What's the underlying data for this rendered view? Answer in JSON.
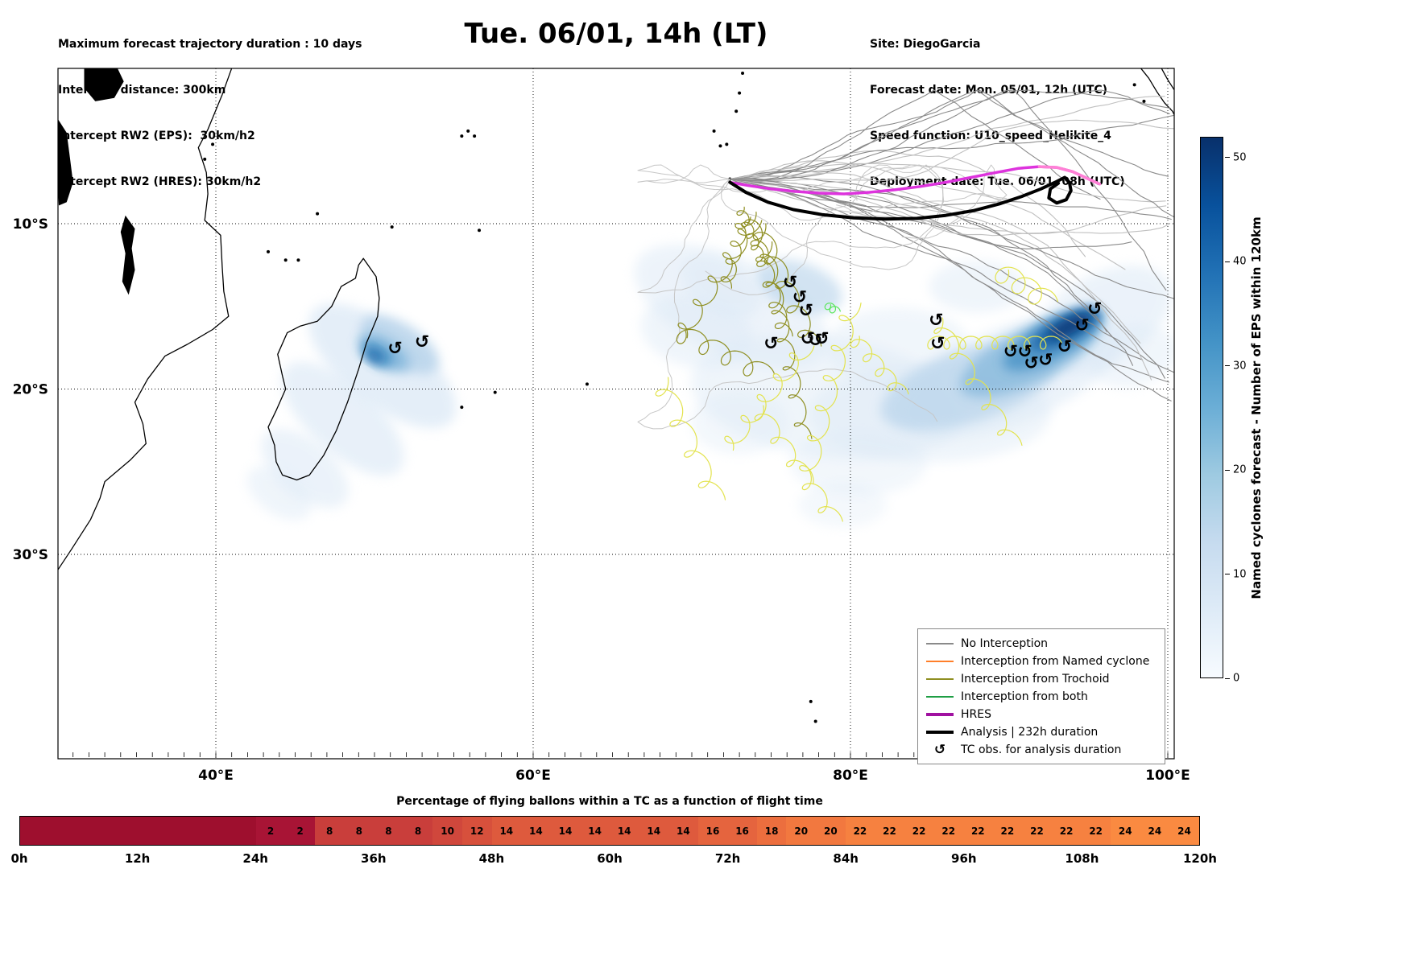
{
  "header": {
    "title": "Tue. 06/01, 14h (LT)",
    "left_lines": [
      "Maximum forecast trajectory duration : 10 days",
      "Intercept distance: 300km",
      "Intercept RW2 (EPS):  30km/h2",
      "Intercept RW2 (HRES): 30km/h2"
    ],
    "right_lines": [
      "Site: DiegoGarcia",
      "Forecast date: Mon. 05/01, 12h (UTC)",
      "Speed function: U10_speed_Helikite_4",
      "Deployment date: Tue. 06/01, 08h (UTC)"
    ]
  },
  "colorbar": {
    "label": "Named cyclones forecast - Number of EPS within 120km",
    "ticks": [
      0,
      10,
      20,
      30,
      40,
      50
    ],
    "vmax": 52,
    "stops": [
      "#f7fbff",
      "#deebf7",
      "#c6dbef",
      "#9ecae1",
      "#6baed6",
      "#4292c6",
      "#2171b5",
      "#08519c",
      "#08306b"
    ]
  },
  "legend": {
    "items": [
      {
        "label": "No Interception",
        "color": "#8a8a8a",
        "lw": 2
      },
      {
        "label": "Interception from Named cyclone",
        "color": "#ff7f2a",
        "lw": 2
      },
      {
        "label": "Interception from Trochoid",
        "color": "#8f8f22",
        "lw": 2
      },
      {
        "label": "Interception from both",
        "color": "#1f9e44",
        "lw": 2
      },
      {
        "label": "HRES",
        "color": "#a011a0",
        "lw": 4
      },
      {
        "label": "Analysis | 232h duration",
        "color": "#000000",
        "lw": 4
      },
      {
        "label": "TC obs. for analysis duration",
        "symbol": "↺"
      }
    ]
  },
  "bottom_bar": {
    "title": "Percentage of flying ballons within a TC as a function of flight time",
    "hours": [
      "0h",
      "12h",
      "24h",
      "36h",
      "48h",
      "60h",
      "72h",
      "84h",
      "96h",
      "108h",
      "120h"
    ],
    "cell_hours": 3,
    "values": [
      null,
      null,
      null,
      null,
      null,
      null,
      null,
      null,
      2,
      2,
      8,
      8,
      8,
      8,
      10,
      12,
      14,
      14,
      14,
      14,
      14,
      14,
      14,
      16,
      16,
      18,
      20,
      20,
      22,
      22,
      22,
      22,
      22,
      22,
      22,
      22,
      22,
      24,
      24,
      24
    ],
    "value_colors": {
      "0": "#9e0f2e",
      "2": "#a81435",
      "8": "#c93e3b",
      "10": "#d0473c",
      "12": "#d7503c",
      "14": "#de5a3d",
      "16": "#e5643e",
      "18": "#ec6e3e",
      "20": "#f2783f",
      "22": "#f68140",
      "24": "#fa8a41"
    }
  },
  "chart_data": {
    "type": "trajectory_map",
    "title": "Tue. 06/01, 14h (LT)",
    "region": {
      "lon_range_deg_e": [
        30,
        100.4
      ],
      "lat_range_deg_s": [
        0.6,
        42
      ]
    },
    "x_ticks": [
      {
        "lon": 40,
        "label": "40°E"
      },
      {
        "lon": 60,
        "label": "60°E"
      },
      {
        "lon": 80,
        "label": "80°E"
      },
      {
        "lon": 100,
        "label": "100°E"
      }
    ],
    "y_ticks": [
      {
        "lat_s": 10,
        "label": "10°S"
      },
      {
        "lat_s": 20,
        "label": "20°S"
      },
      {
        "lat_s": 30,
        "label": "30°S"
      }
    ],
    "origin_site": {
      "name": "DiegoGarcia",
      "lon": 72.4,
      "lat_s": 7.3
    },
    "obs_symbol": "↺",
    "colors": {
      "hres": "#dd33dd",
      "hres_tail": "#ff80d5",
      "analysis": "#000000",
      "olive": "#8f8f22",
      "yellow": "#e3e34f",
      "green": "#5ce65c",
      "gray_dark": "#8a8a8a",
      "gray_light": "#c0c0c0"
    },
    "hres_track": [
      [
        72.4,
        7.5
      ],
      [
        73.6,
        7.7
      ],
      [
        75.0,
        7.9
      ],
      [
        76.5,
        8.05
      ],
      [
        78.0,
        8.15
      ],
      [
        79.6,
        8.2
      ],
      [
        81.2,
        8.1
      ],
      [
        82.8,
        7.95
      ],
      [
        84.4,
        7.75
      ],
      [
        86.0,
        7.5
      ],
      [
        87.6,
        7.2
      ],
      [
        89.2,
        6.9
      ],
      [
        90.6,
        6.65
      ],
      [
        91.9,
        6.55
      ],
      [
        93.0,
        6.6
      ],
      [
        94.0,
        6.85
      ],
      [
        94.9,
        7.25
      ],
      [
        95.7,
        7.6
      ]
    ],
    "hres_tail_from": 13,
    "analysis_track": [
      [
        72.4,
        7.5
      ],
      [
        73.4,
        8.1
      ],
      [
        74.8,
        8.7
      ],
      [
        76.4,
        9.15
      ],
      [
        78.2,
        9.45
      ],
      [
        80.2,
        9.65
      ],
      [
        82.2,
        9.72
      ],
      [
        84.2,
        9.68
      ],
      [
        86.0,
        9.5
      ],
      [
        87.8,
        9.2
      ],
      [
        89.4,
        8.8
      ],
      [
        90.8,
        8.35
      ],
      [
        92.0,
        7.9
      ],
      [
        92.9,
        7.5
      ],
      [
        93.5,
        7.2
      ],
      [
        93.8,
        7.5
      ],
      [
        93.9,
        8.0
      ],
      [
        93.6,
        8.55
      ],
      [
        93.0,
        8.75
      ],
      [
        92.5,
        8.45
      ],
      [
        92.6,
        7.9
      ],
      [
        93.1,
        7.55
      ]
    ],
    "tc_observations": [
      [
        51.3,
        17.5
      ],
      [
        53.0,
        17.1
      ],
      [
        75.0,
        17.2
      ],
      [
        76.2,
        13.5
      ],
      [
        76.8,
        14.4
      ],
      [
        77.2,
        15.2
      ],
      [
        77.3,
        16.9
      ],
      [
        77.8,
        17.0
      ],
      [
        78.2,
        16.9
      ],
      [
        85.4,
        15.8
      ],
      [
        85.5,
        17.2
      ],
      [
        90.1,
        17.7
      ],
      [
        91.0,
        17.7
      ],
      [
        91.4,
        18.4
      ],
      [
        92.3,
        18.2
      ],
      [
        93.5,
        17.4
      ],
      [
        94.6,
        16.1
      ],
      [
        95.4,
        15.1
      ]
    ],
    "blob_colors": {
      "1": "#dce9f6",
      "2": "#b5d2ea",
      "3": "#85b8dc",
      "4": "#4d95c8",
      "5": "#1d65a8",
      "6": "#0a3a78"
    },
    "density_blobs": [
      [
        50.5,
        18.6,
        110,
        48,
        38,
        1,
        0.75
      ],
      [
        48.0,
        21.8,
        95,
        42,
        42,
        1,
        0.65
      ],
      [
        45.6,
        24.8,
        65,
        34,
        40,
        1,
        0.55
      ],
      [
        44.0,
        26.3,
        45,
        26,
        35,
        1,
        0.45
      ],
      [
        51.6,
        17.3,
        55,
        26,
        32,
        2,
        0.8
      ],
      [
        50.6,
        17.8,
        36,
        17,
        32,
        3,
        0.85
      ],
      [
        50.2,
        17.9,
        22,
        11,
        32,
        4,
        0.9
      ],
      [
        50.0,
        18.0,
        12,
        6,
        32,
        5,
        0.9
      ],
      [
        72.5,
        15.0,
        130,
        60,
        25,
        1,
        0.5
      ],
      [
        70.3,
        16.5,
        70,
        45,
        10,
        1,
        0.45
      ],
      [
        78.5,
        20.5,
        170,
        75,
        8,
        1,
        0.45
      ],
      [
        85.0,
        21.5,
        150,
        60,
        0,
        1,
        0.45
      ],
      [
        90.0,
        19.2,
        150,
        60,
        -22,
        1,
        0.55
      ],
      [
        95.8,
        15.8,
        95,
        55,
        -30,
        1,
        0.55
      ],
      [
        80.5,
        24.5,
        85,
        40,
        0,
        1,
        0.35
      ],
      [
        73.0,
        22.0,
        60,
        40,
        0,
        1,
        0.35
      ],
      [
        79.5,
        27.0,
        55,
        28,
        0,
        1,
        0.3
      ],
      [
        76.8,
        13.8,
        55,
        30,
        20,
        2,
        0.6
      ],
      [
        71.8,
        13.8,
        55,
        32,
        30,
        1,
        0.5
      ],
      [
        88.0,
        13.8,
        60,
        32,
        0,
        1,
        0.45
      ],
      [
        83.0,
        17.5,
        90,
        50,
        0,
        1,
        0.4
      ],
      [
        97.8,
        18.0,
        55,
        38,
        -15,
        1,
        0.4
      ],
      [
        87.5,
        19.8,
        115,
        45,
        -18,
        2,
        0.65
      ],
      [
        91.3,
        18.0,
        95,
        34,
        -26,
        3,
        0.75
      ],
      [
        92.8,
        17.0,
        70,
        24,
        -28,
        4,
        0.85
      ],
      [
        93.5,
        16.4,
        48,
        15,
        -28,
        5,
        0.9
      ],
      [
        93.8,
        16.2,
        30,
        9,
        -28,
        6,
        0.95
      ]
    ],
    "ensemble": {
      "count": 26,
      "seed": 7,
      "color_dark": "#8a8a8a",
      "color_light": "#c0c0c0"
    },
    "meanderers": {
      "count": 5,
      "seed": 13,
      "color": "#c6c6c6"
    },
    "trochoids_olive": [
      {
        "f": [
          73.6,
          9.3
        ],
        "t": [
          75.9,
          16.8
        ],
        "n": 6,
        "r": 9
      },
      {
        "f": [
          74.1,
          10.0
        ],
        "t": [
          77.6,
          17.4
        ],
        "n": 5,
        "r": 11
      },
      {
        "f": [
          73.3,
          9.6
        ],
        "t": [
          72.1,
          13.9
        ],
        "n": 4,
        "r": 8
      },
      {
        "f": [
          73.9,
          9.8
        ],
        "t": [
          69.2,
          16.9
        ],
        "n": 5,
        "r": 10
      },
      {
        "f": [
          74.6,
          11.1
        ],
        "t": [
          77.1,
          23.0
        ],
        "n": 7,
        "r": 9
      },
      {
        "f": [
          69.0,
          16.5
        ],
        "t": [
          74.6,
          19.1
        ],
        "n": 4,
        "r": 12
      },
      {
        "f": [
          73.0,
          9.0
        ],
        "t": [
          74.5,
          12.5
        ],
        "n": 5,
        "r": 6
      }
    ],
    "trochoids_yellow": [
      {
        "f": [
          80.1,
          14.8
        ],
        "t": [
          77.1,
          25.7
        ],
        "n": 6,
        "r": 11
      },
      {
        "f": [
          85.3,
          15.7
        ],
        "t": [
          90.3,
          23.4
        ],
        "n": 5,
        "r": 10
      },
      {
        "f": [
          89.3,
          12.8
        ],
        "t": [
          92.4,
          14.7
        ],
        "n": 3,
        "r": 13
      },
      {
        "f": [
          84.8,
          17.2
        ],
        "t": [
          92.9,
          17.2
        ],
        "n": 8,
        "r": 8
      },
      {
        "f": [
          77.2,
          17.4
        ],
        "t": [
          72.1,
          23.7
        ],
        "n": 5,
        "r": 10
      },
      {
        "f": [
          67.9,
          19.3
        ],
        "t": [
          71.5,
          26.7
        ],
        "n": 4,
        "r": 12
      },
      {
        "f": [
          80.1,
          16.8
        ],
        "t": [
          83.2,
          20.3
        ],
        "n": 4,
        "r": 9
      },
      {
        "f": [
          74.0,
          21.0
        ],
        "t": [
          79.0,
          28.0
        ],
        "n": 5,
        "r": 10
      }
    ],
    "green_mark": {
      "f": [
        78.5,
        14.9
      ],
      "t": [
        79.1,
        15.3
      ],
      "n": 2,
      "r": 5
    },
    "coastlines": {
      "lines": [
        [
          [
            41.0,
            0.6
          ],
          [
            40.4,
            2.2
          ],
          [
            39.5,
            4.3
          ],
          [
            38.9,
            5.4
          ],
          [
            39.4,
            6.9
          ],
          [
            39.5,
            8.2
          ],
          [
            39.3,
            9.8
          ],
          [
            40.3,
            10.7
          ],
          [
            40.4,
            12.6
          ],
          [
            40.5,
            14.1
          ],
          [
            40.8,
            15.6
          ],
          [
            39.8,
            16.4
          ],
          [
            38.2,
            17.3
          ],
          [
            36.8,
            18.0
          ],
          [
            35.7,
            19.4
          ],
          [
            34.9,
            20.8
          ],
          [
            35.4,
            22.1
          ],
          [
            35.6,
            23.3
          ],
          [
            34.6,
            24.3
          ],
          [
            33.0,
            25.6
          ],
          [
            32.7,
            26.6
          ],
          [
            32.1,
            27.9
          ],
          [
            30.9,
            29.7
          ],
          [
            30.0,
            31.0
          ]
        ],
        [
          [
            49.3,
            12.1
          ],
          [
            50.1,
            13.2
          ],
          [
            50.3,
            14.5
          ],
          [
            50.2,
            15.6
          ],
          [
            49.9,
            16.3
          ],
          [
            49.5,
            17.2
          ],
          [
            49.0,
            18.8
          ],
          [
            48.3,
            20.8
          ],
          [
            47.6,
            22.5
          ],
          [
            46.8,
            24.0
          ],
          [
            45.9,
            25.2
          ],
          [
            45.1,
            25.5
          ],
          [
            44.2,
            25.2
          ],
          [
            43.8,
            24.4
          ],
          [
            43.7,
            23.4
          ],
          [
            43.3,
            22.3
          ],
          [
            43.8,
            21.3
          ],
          [
            44.4,
            20.0
          ],
          [
            44.2,
            19.2
          ],
          [
            43.9,
            17.9
          ],
          [
            44.5,
            16.6
          ],
          [
            45.3,
            16.2
          ],
          [
            46.4,
            15.9
          ],
          [
            47.3,
            15.0
          ],
          [
            47.9,
            13.8
          ],
          [
            48.8,
            13.3
          ],
          [
            49.0,
            12.5
          ],
          [
            49.3,
            12.1
          ]
        ],
        [
          [
            98.3,
            0.6
          ],
          [
            98.8,
            1.2
          ],
          [
            99.3,
            2.0
          ],
          [
            99.8,
            2.7
          ],
          [
            100.3,
            3.2
          ],
          [
            100.4,
            3.4
          ]
        ],
        [
          [
            99.6,
            0.6
          ],
          [
            100.0,
            1.3
          ],
          [
            100.4,
            1.9
          ]
        ]
      ],
      "lakes": [
        [
          [
            31.7,
            0.6
          ],
          [
            33.8,
            0.6
          ],
          [
            34.2,
            1.4
          ],
          [
            33.6,
            2.4
          ],
          [
            32.4,
            2.6
          ],
          [
            31.7,
            1.8
          ]
        ],
        [
          [
            34.3,
            9.5
          ],
          [
            34.9,
            10.3
          ],
          [
            34.7,
            11.5
          ],
          [
            34.9,
            12.8
          ],
          [
            34.5,
            14.3
          ],
          [
            34.1,
            13.5
          ],
          [
            34.3,
            11.8
          ],
          [
            34.0,
            10.5
          ]
        ],
        [
          [
            30.0,
            3.6
          ],
          [
            30.6,
            4.5
          ],
          [
            30.8,
            6.0
          ],
          [
            31.0,
            7.5
          ],
          [
            30.6,
            8.7
          ],
          [
            30.1,
            8.9
          ],
          [
            30.0,
            7.0
          ]
        ]
      ],
      "island_dots": [
        [
          39.3,
          6.1
        ],
        [
          39.8,
          5.2
        ],
        [
          43.3,
          11.7
        ],
        [
          44.4,
          12.2
        ],
        [
          45.2,
          12.2
        ],
        [
          55.5,
          4.7
        ],
        [
          55.9,
          4.4
        ],
        [
          56.3,
          4.7
        ],
        [
          46.4,
          9.4
        ],
        [
          51.1,
          10.2
        ],
        [
          56.6,
          10.4
        ],
        [
          57.6,
          20.2
        ],
        [
          55.5,
          21.1
        ],
        [
          63.4,
          19.7
        ],
        [
          71.8,
          5.3
        ],
        [
          72.2,
          5.2
        ],
        [
          73.2,
          0.9
        ],
        [
          73.0,
          2.1
        ],
        [
          72.8,
          3.2
        ],
        [
          71.4,
          4.4
        ],
        [
          97.9,
          1.6
        ],
        [
          98.5,
          2.6
        ],
        [
          77.5,
          38.9
        ],
        [
          77.8,
          40.1
        ],
        [
          72.4,
          7.3
        ]
      ]
    }
  }
}
